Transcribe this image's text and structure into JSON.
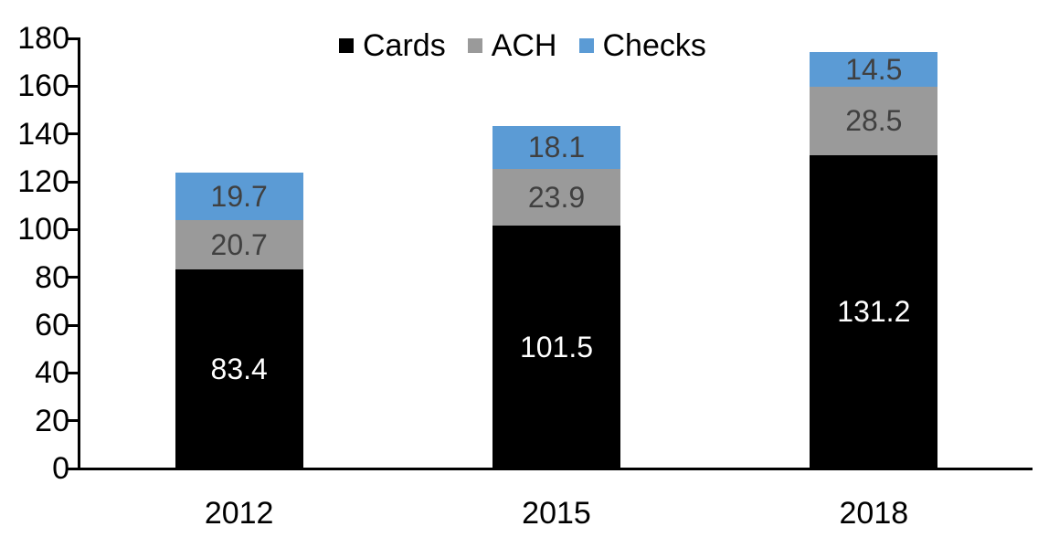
{
  "chart_data": {
    "type": "bar",
    "stacked": true,
    "title": "",
    "xlabel": "",
    "ylabel": "",
    "categories": [
      "2012",
      "2015",
      "2018"
    ],
    "series": [
      {
        "name": "Cards",
        "color": "#000000",
        "label_color": "#ffffff",
        "values": [
          83.4,
          101.5,
          131.2
        ]
      },
      {
        "name": "ACH",
        "color": "#9a9a9a",
        "label_color": "#404040",
        "values": [
          20.7,
          23.9,
          28.5
        ]
      },
      {
        "name": "Checks",
        "color": "#5b9bd5",
        "label_color": "#404040",
        "values": [
          19.7,
          18.1,
          14.5
        ]
      }
    ],
    "ylim": [
      0,
      180
    ],
    "yticks": [
      0,
      20,
      40,
      60,
      80,
      100,
      120,
      140,
      160,
      180
    ],
    "grid": false,
    "legend_position": "top-center",
    "value_labels": "inside-center",
    "axis_color": "#000000"
  }
}
